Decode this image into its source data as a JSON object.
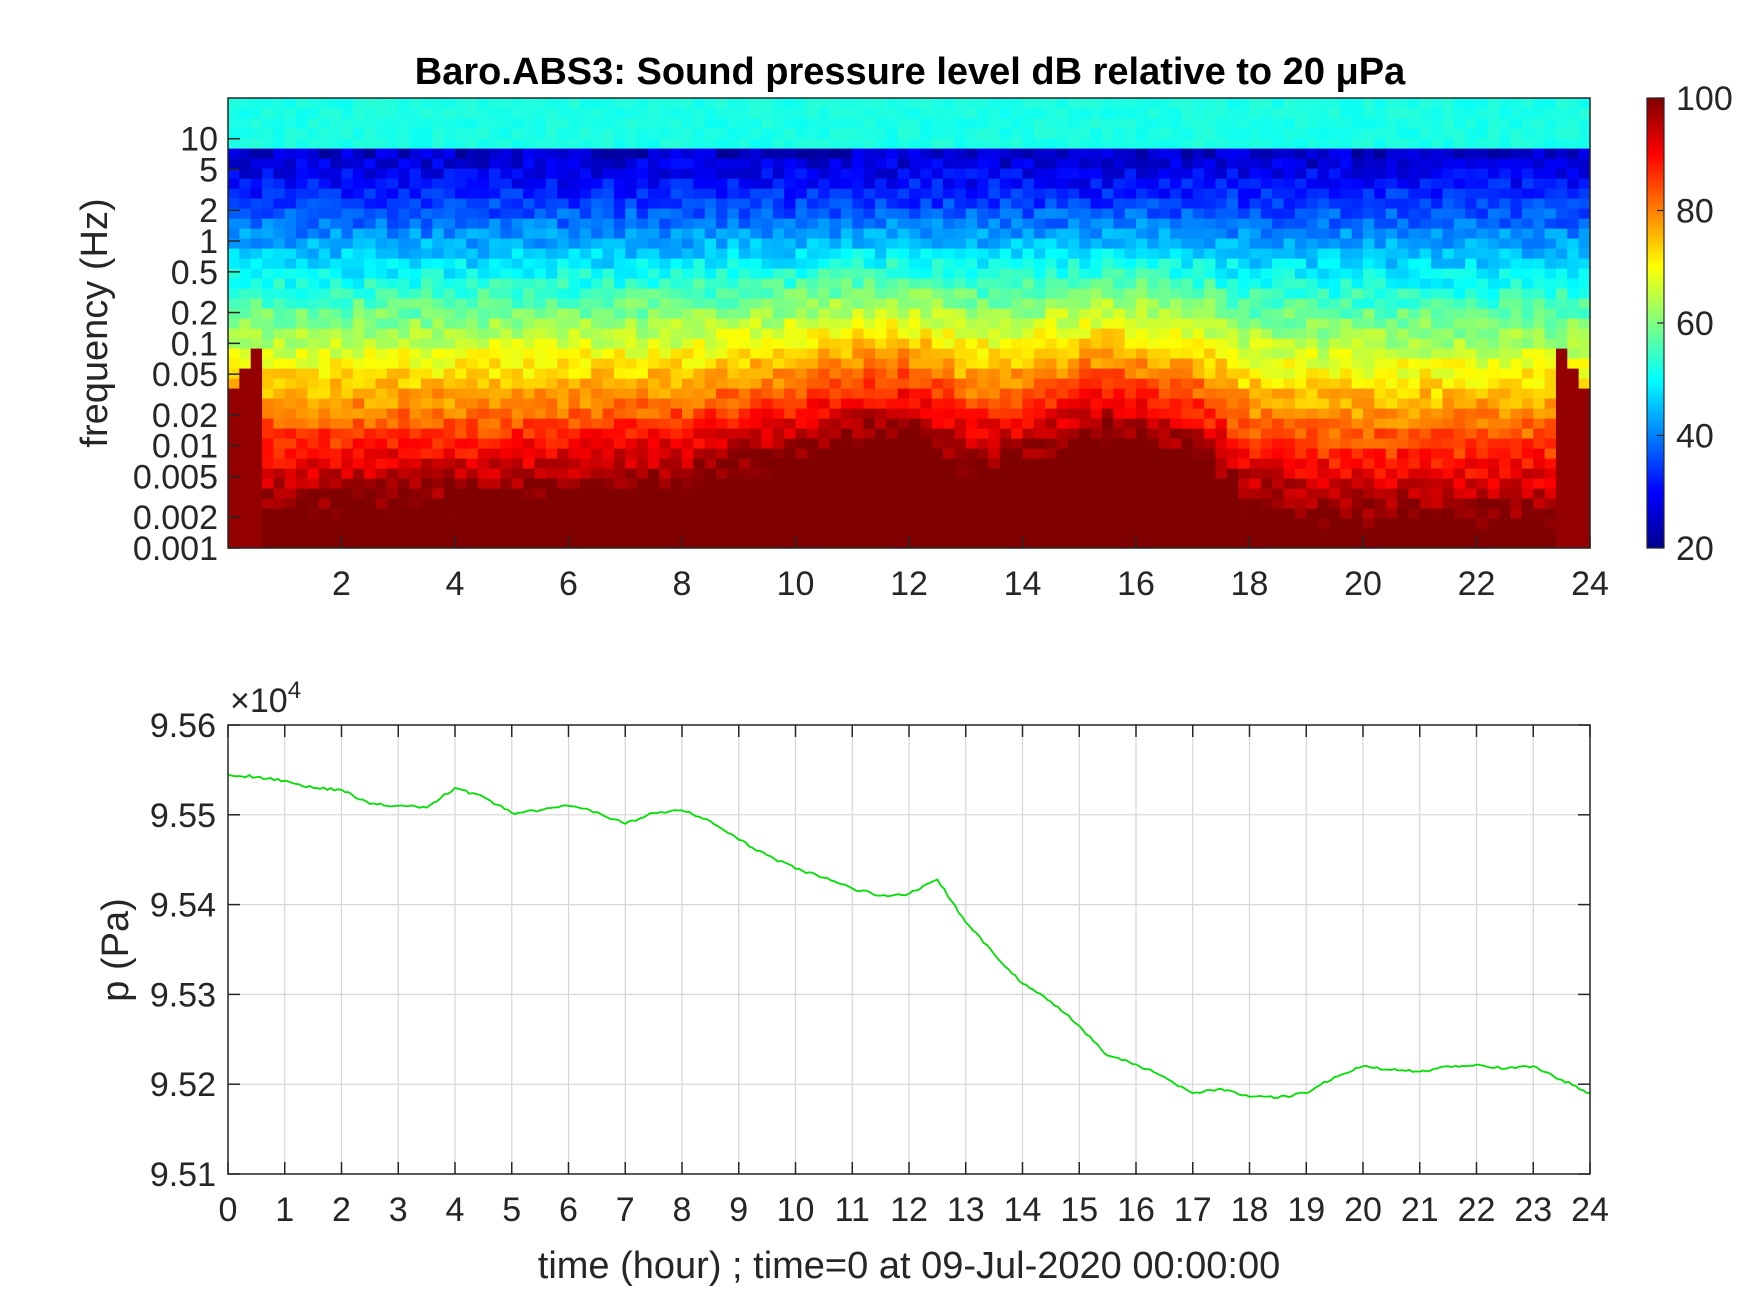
{
  "colors": {
    "trace": "#00e000",
    "axis": "#262626",
    "grid": "#d6d6d6"
  },
  "chart_data": [
    {
      "type": "heatmap",
      "title": "Baro.ABS3: Sound pressure level dB relative to 20 μPa",
      "xlabel": "",
      "ylabel": "frequency (Hz)",
      "colormap": "jet",
      "xlim": [
        0,
        24
      ],
      "ylim": [
        0.001,
        25
      ],
      "y_scale": "log",
      "x_ticks": [
        "2",
        "4",
        "6",
        "8",
        "10",
        "12",
        "14",
        "16",
        "18",
        "20",
        "22",
        "24"
      ],
      "y_ticks": [
        "0.001",
        "0.002",
        "0.005",
        "0.01",
        "0.02",
        "0.05",
        "0.1",
        "0.2",
        "0.5",
        "1",
        "2",
        "5",
        "10"
      ],
      "colorbar": {
        "label": "",
        "range": [
          20,
          100
        ],
        "ticks": [
          "20",
          "40",
          "60",
          "80",
          "100"
        ]
      },
      "intensity_profile": {
        "time_hour": [
          0,
          2,
          4,
          6,
          8,
          10,
          11,
          12,
          13,
          14,
          15.5,
          17,
          18,
          20,
          22,
          24
        ],
        "strength": [
          0.35,
          0.38,
          0.4,
          0.45,
          0.5,
          0.7,
          0.85,
          0.9,
          0.6,
          0.65,
          0.9,
          0.7,
          0.35,
          0.3,
          0.3,
          0.3
        ]
      }
    },
    {
      "type": "line",
      "title": "",
      "xlabel": "time (hour) ; time=0 at 09-Jul-2020 00:00:00",
      "ylabel": "p (Pa)",
      "xlim": [
        0,
        24
      ],
      "ylim": [
        95100,
        95600
      ],
      "y_multiplier_label": "×10",
      "y_multiplier_exp": "4",
      "x_ticks": [
        "0",
        "1",
        "2",
        "3",
        "4",
        "5",
        "6",
        "7",
        "8",
        "9",
        "10",
        "11",
        "12",
        "13",
        "14",
        "15",
        "16",
        "17",
        "18",
        "19",
        "20",
        "21",
        "22",
        "23",
        "24"
      ],
      "y_ticks": [
        "9.51",
        "9.52",
        "9.53",
        "9.54",
        "9.55",
        "9.56"
      ],
      "grid": true,
      "series": [
        {
          "x": [
            0,
            0.5,
            1,
            1.5,
            2,
            2.5,
            3,
            3.5,
            4,
            4.5,
            5,
            5.5,
            6,
            6.5,
            7,
            7.5,
            8,
            8.5,
            9,
            9.5,
            10,
            10.5,
            11,
            11.5,
            12,
            12.5,
            13,
            13.5,
            14,
            14.5,
            15,
            15.5,
            16,
            16.5,
            17,
            17.5,
            18,
            18.5,
            19,
            19.5,
            20,
            20.5,
            21,
            21.5,
            22,
            22.5,
            23,
            23.5,
            24
          ],
          "y": [
            95545,
            95542,
            95538,
            95530,
            95528,
            95512,
            95510,
            95508,
            95530,
            95520,
            95502,
            95505,
            95510,
            95503,
            95490,
            95502,
            95505,
            95493,
            95472,
            95455,
            95440,
            95430,
            95418,
            95410,
            95412,
            95428,
            95380,
            95345,
            95312,
            95292,
            95265,
            95232,
            95222,
            95208,
            95190,
            95195,
            95186,
            95185,
            95190,
            95208,
            95220,
            95216,
            95214,
            95220,
            95222,
            95217,
            95220,
            95205,
            95190
          ]
        }
      ]
    }
  ]
}
